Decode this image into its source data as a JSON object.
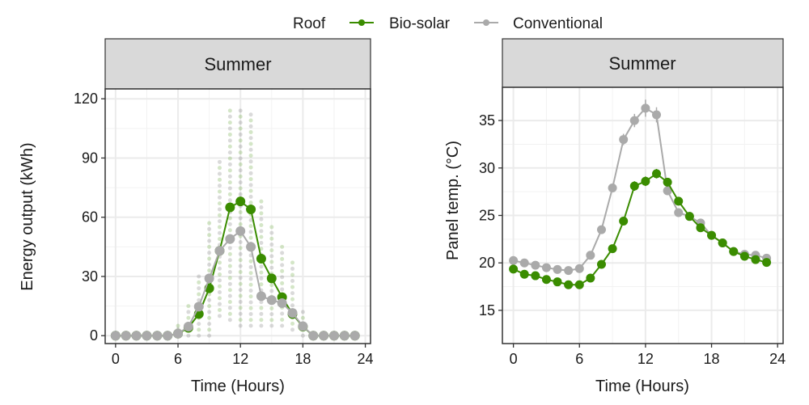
{
  "legend": {
    "title": "Roof",
    "entries": [
      {
        "label": "Bio-solar",
        "color": "#3a8c00"
      },
      {
        "label": "Conventional",
        "color": "#aaaaaa"
      }
    ],
    "placement": "top"
  },
  "chart_data": [
    {
      "type": "line",
      "facet": "Summer",
      "xlabel": "Time (Hours)",
      "ylabel": "Energy output (kWh)",
      "xlim": [
        -1,
        24.5
      ],
      "ylim": [
        -4,
        125
      ],
      "xticks": [
        "0",
        "6",
        "12",
        "18",
        "24"
      ],
      "yticks": [
        "0",
        "30",
        "60",
        "90",
        "120"
      ],
      "grid": true,
      "x": [
        0,
        1,
        2,
        3,
        4,
        5,
        6,
        7,
        8,
        9,
        10,
        11,
        12,
        13,
        14,
        15,
        16,
        17,
        18,
        19,
        20,
        21,
        22,
        23
      ],
      "series": [
        {
          "name": "Bio-solar",
          "color": "#3a8c00",
          "values": [
            0,
            0,
            0,
            0,
            0,
            0,
            1,
            4,
            11,
            24,
            43,
            65,
            68,
            64,
            39,
            29,
            19.5,
            11,
            4.6,
            0,
            0,
            0,
            0,
            0
          ]
        },
        {
          "name": "Conventional",
          "color": "#aaaaaa",
          "values": [
            0,
            0,
            0,
            0,
            0,
            0,
            1,
            4.6,
            14.7,
            29,
            43,
            49,
            53,
            45,
            20,
            18,
            16.5,
            11.5,
            4.8,
            0,
            0,
            0,
            0,
            0
          ]
        }
      ],
      "raw_observation_range": {
        "hours": [
          6,
          7,
          8,
          9,
          10,
          11,
          12,
          13,
          14,
          15,
          16,
          17,
          18
        ],
        "min": [
          0,
          0,
          0,
          0,
          10,
          8,
          5,
          5,
          5,
          5,
          5,
          3,
          0
        ],
        "max": [
          5,
          15,
          30,
          57,
          88,
          114,
          114,
          112,
          68,
          55,
          45,
          37,
          12
        ]
      }
    },
    {
      "type": "line",
      "facet": "Summer",
      "xlabel": "Time (Hours)",
      "ylabel": "Panel temp. (°C)",
      "xlim": [
        -1,
        24.5
      ],
      "ylim": [
        11.5,
        38.5
      ],
      "xticks": [
        "0",
        "6",
        "12",
        "18",
        "24"
      ],
      "yticks": [
        "15",
        "20",
        "25",
        "30",
        "35"
      ],
      "grid": true,
      "error_bars": true,
      "x": [
        0,
        1,
        2,
        3,
        4,
        5,
        6,
        7,
        8,
        9,
        10,
        11,
        12,
        13,
        14,
        15,
        16,
        17,
        18,
        19,
        20,
        21,
        22,
        23
      ],
      "series": [
        {
          "name": "Bio-solar",
          "color": "#3a8c00",
          "values": [
            19.35,
            18.8,
            18.65,
            18.25,
            18,
            17.7,
            17.7,
            18.4,
            19.85,
            21.5,
            24.4,
            28.1,
            28.6,
            29.4,
            28.5,
            26.5,
            24.9,
            23.7,
            22.9,
            22.1,
            21.2,
            20.7,
            20.35,
            20.05
          ],
          "error": [
            0.2,
            0.2,
            0.2,
            0.2,
            0.2,
            0.2,
            0.2,
            0.2,
            0.3,
            0.3,
            0.4,
            0.5,
            0.5,
            0.5,
            0.4,
            0.4,
            0.3,
            0.2,
            0.2,
            0.2,
            0.2,
            0.2,
            0.2,
            0.2
          ]
        },
        {
          "name": "Conventional",
          "color": "#aaaaaa",
          "values": [
            20.25,
            20,
            19.75,
            19.5,
            19.3,
            19.2,
            19.4,
            20.8,
            23.5,
            27.9,
            33,
            35,
            36.3,
            35.6,
            27.6,
            25.3,
            24.9,
            24.2,
            22.9,
            22.1,
            21.2,
            20.9,
            20.8,
            20.5
          ],
          "error": [
            0.2,
            0.2,
            0.2,
            0.2,
            0.2,
            0.2,
            0.2,
            0.2,
            0.3,
            0.4,
            0.6,
            0.7,
            0.9,
            0.8,
            0.4,
            0.3,
            0.2,
            0.2,
            0.2,
            0.2,
            0.2,
            0.2,
            0.2,
            0.2
          ]
        }
      ]
    }
  ]
}
